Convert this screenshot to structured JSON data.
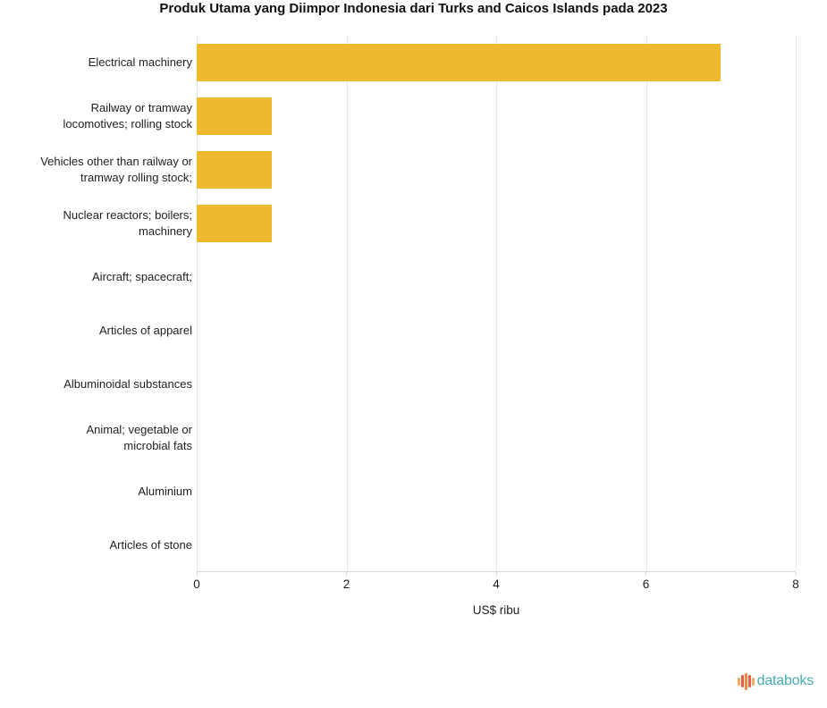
{
  "chart_data": {
    "type": "bar",
    "orientation": "horizontal",
    "title": "Produk Utama yang Diimpor Indonesia dari Turks and Caicos Islands pada 2023",
    "categories": [
      "Electrical machinery",
      "Railway or tramway locomotives; rolling stock",
      "Vehicles other than railway or tramway rolling stock;",
      "Nuclear reactors; boilers; machinery",
      "Aircraft; spacecraft;",
      "Articles of apparel",
      "Albuminoidal substances",
      "Animal; vegetable or microbial fats",
      "Aluminium",
      "Articles of stone"
    ],
    "category_display_lines": [
      [
        "Electrical machinery"
      ],
      [
        "Railway or tramway",
        "locomotives; rolling stock"
      ],
      [
        "Vehicles other than railway or",
        "tramway rolling stock;"
      ],
      [
        "Nuclear reactors; boilers;",
        "machinery"
      ],
      [
        "Aircraft; spacecraft;"
      ],
      [
        "Articles of apparel"
      ],
      [
        "Albuminoidal substances"
      ],
      [
        "Animal; vegetable or",
        "microbial fats"
      ],
      [
        "Aluminium"
      ],
      [
        "Articles of stone"
      ]
    ],
    "values": [
      7,
      1,
      1,
      1,
      0,
      0,
      0,
      0,
      0,
      0
    ],
    "xlabel": "US$ ribu",
    "ylabel": "",
    "xlim": [
      0,
      8
    ],
    "xticks": [
      0,
      2,
      4,
      6,
      8
    ],
    "bar_color": "#EDB92D",
    "gridline_color": "#e9e9e9",
    "grid": "vertical",
    "legend": false
  },
  "footer": {
    "brand": "databoks",
    "brand_color": "#45ADB2",
    "icon": "bar-wave-icon",
    "icon_bar_colors": [
      "#F5A962",
      "#E7604B",
      "#EF8A3B",
      "#E7604B",
      "#F5A962"
    ],
    "icon_bar_heights": [
      9,
      14,
      19,
      14,
      9
    ]
  }
}
